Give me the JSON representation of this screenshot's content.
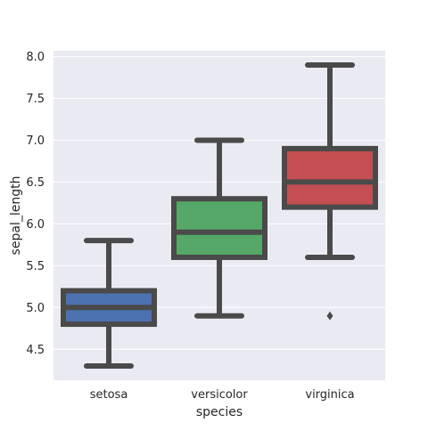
{
  "chart_data": {
    "type": "box",
    "xlabel": "species",
    "ylabel": "sepal_length",
    "categories": [
      "setosa",
      "versicolor",
      "virginica"
    ],
    "ylim": [
      4.13,
      8.07
    ],
    "y_ticks": [
      4.5,
      5.0,
      5.5,
      6.0,
      6.5,
      7.0,
      7.5,
      8.0
    ],
    "y_tick_labels": [
      "4.5",
      "5.0",
      "5.5",
      "6.0",
      "6.5",
      "7.0",
      "7.5",
      "8.0"
    ],
    "grid": true,
    "boxes": [
      {
        "category": "setosa",
        "min": 4.3,
        "q1": 4.8,
        "median": 5.0,
        "q3": 5.2,
        "max": 5.8,
        "outliers": [],
        "color": "#4c72b0"
      },
      {
        "category": "versicolor",
        "min": 4.9,
        "q1": 5.6,
        "median": 5.9,
        "q3": 6.3,
        "max": 7.0,
        "outliers": [],
        "color": "#55a868"
      },
      {
        "category": "virginica",
        "min": 5.6,
        "q1": 6.2,
        "median": 6.5,
        "q3": 6.9,
        "max": 7.9,
        "outliers": [
          4.9
        ],
        "color": "#c44e52"
      }
    ],
    "line_color": "#4a4a4a",
    "plot_background": "#eaeaf2",
    "grid_color": "#ffffff"
  }
}
